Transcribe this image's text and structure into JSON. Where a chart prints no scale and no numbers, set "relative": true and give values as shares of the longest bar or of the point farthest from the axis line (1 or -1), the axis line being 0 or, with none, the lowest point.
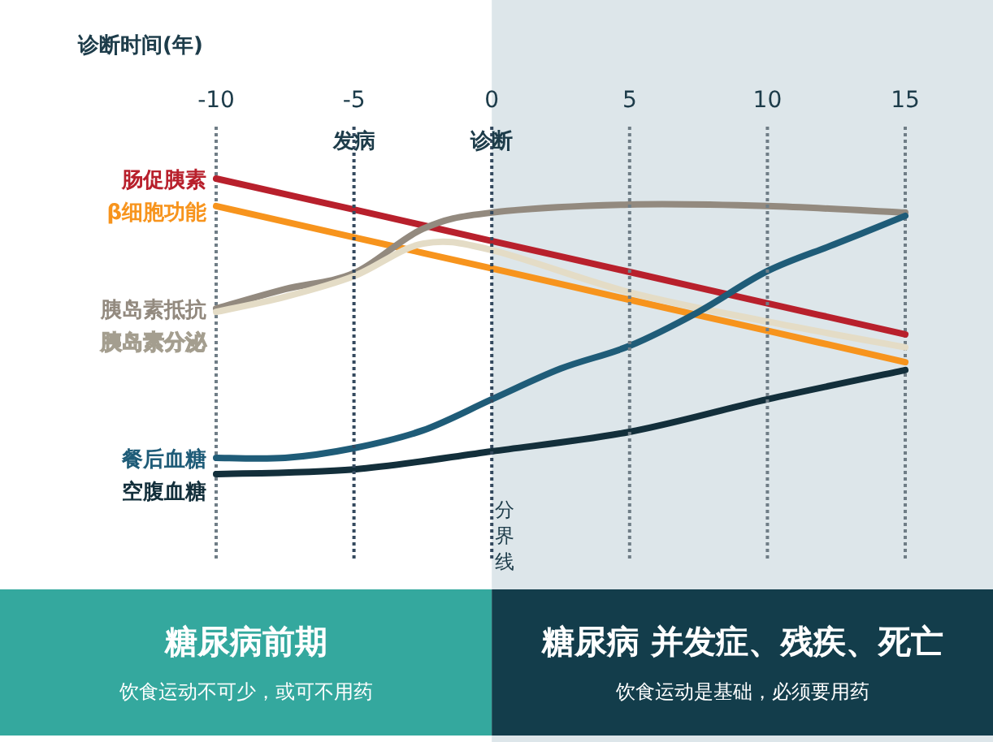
{
  "chart_data": {
    "type": "line",
    "relative": true,
    "xlabel": "诊断时间(年)",
    "xlim": [
      -10,
      15
    ],
    "xticks": [
      -10,
      -5,
      0,
      5,
      10,
      15
    ],
    "line_style": "solid",
    "marker": "none",
    "legend": false,
    "series": [
      {
        "name": "肠促胰素",
        "color": "#b8202c",
        "x": [
          -10,
          -5,
          0,
          5,
          10,
          15
        ],
        "values": [
          1.0,
          0.895,
          0.789,
          0.684,
          0.578,
          0.473
        ]
      },
      {
        "name": "β细胞功能",
        "color": "#f7941d",
        "x": [
          -10,
          -5,
          0,
          5,
          10,
          15
        ],
        "values": [
          0.907,
          0.801,
          0.696,
          0.59,
          0.485,
          0.379
        ]
      },
      {
        "name": "胰岛素抵抗",
        "color": "#938a7f",
        "x": [
          -10,
          -7.5,
          -5,
          -2.5,
          0,
          5,
          10,
          15
        ],
        "values": [
          0.56,
          0.626,
          0.68,
          0.83,
          0.885,
          0.912,
          0.907,
          0.885
        ]
      },
      {
        "name": "胰岛素分泌",
        "color": "#e4dcc6",
        "x": [
          -10,
          -7.5,
          -5,
          -2.5,
          0,
          5,
          10,
          15
        ],
        "values": [
          0.549,
          0.6,
          0.67,
          0.78,
          0.758,
          0.615,
          0.516,
          0.429
        ]
      },
      {
        "name": "餐后血糖",
        "color": "#1f5c78",
        "x": [
          -10,
          -7.5,
          -5,
          -2.5,
          0,
          2.5,
          5,
          7.5,
          10,
          12.5,
          15
        ],
        "values": [
          0.055,
          0.055,
          0.088,
          0.148,
          0.253,
          0.357,
          0.434,
          0.549,
          0.687,
          0.78,
          0.874
        ]
      },
      {
        "name": "空腹血糖",
        "color": "#132f3b",
        "x": [
          -10,
          -5,
          0,
          5,
          10,
          15
        ],
        "values": [
          0.0,
          0.016,
          0.077,
          0.143,
          0.253,
          0.352
        ]
      }
    ],
    "ref_lines": [
      {
        "axis": "x",
        "value": -5,
        "label": "发病",
        "line_style": "dotted",
        "color": "#34495e"
      },
      {
        "axis": "x",
        "value": 0,
        "label": "诊断",
        "line_style": "dotted",
        "color": "#34495e"
      },
      {
        "axis": "x",
        "value": 5,
        "line_style": "dotted",
        "color": "#6f7d86"
      },
      {
        "axis": "x",
        "value": 10,
        "line_style": "dotted",
        "color": "#6f7d86"
      }
    ],
    "bands": [
      {
        "axis": "x",
        "from": 0,
        "to": 15,
        "color": "#dde6ea"
      }
    ],
    "annotations": [
      "分界线",
      "糖尿病前期",
      "饮食运动不可少，或可不用药",
      "糖尿病 并发症、残疾、死亡",
      "饮食运动是基础，必须要用药"
    ]
  }
}
